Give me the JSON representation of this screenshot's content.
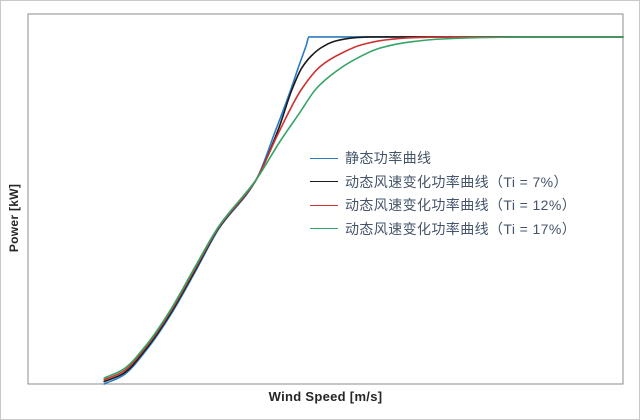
{
  "figure": {
    "x_axis_title": "Wind Speed [m/s]",
    "y_axis_title": "Power [kW]"
  },
  "frame": {
    "plot_border_color": "#8c8c8c",
    "outer_border_color": "#c9c9c9",
    "background": "#ffffff"
  },
  "chart_data": {
    "type": "line",
    "title": "",
    "xlabel": "Wind Speed [m/s]",
    "ylabel": "Power [kW]",
    "axis_note": "no tick labels shown on either axis; x estimated as 0-25 m/s, y normalized to percent of rated power",
    "xlim": [
      0,
      25
    ],
    "ylim": [
      0,
      106.6
    ],
    "grid": false,
    "legend_position": "inside plot, center-right",
    "series": [
      {
        "name": "static-power-curve",
        "label": "静态功率曲线",
        "color": "#2B7BC4",
        "shape": "rises steeply and hits rated power with a sharp corner",
        "points": [
          [
            3.2,
            0
          ],
          [
            4,
            2.5
          ],
          [
            5,
            10
          ],
          [
            6,
            20
          ],
          [
            7,
            32
          ],
          [
            8,
            44.5
          ],
          [
            9.6,
            59
          ],
          [
            10.4,
            73
          ],
          [
            11,
            84
          ],
          [
            11.4,
            92
          ],
          [
            11.7,
            97.8
          ],
          [
            11.8,
            100
          ],
          [
            13,
            100
          ],
          [
            16,
            100
          ],
          [
            20,
            100
          ],
          [
            25,
            100
          ]
        ]
      },
      {
        "name": "dynamic-ti-7",
        "label": "动态风速变化功率曲线（Ti = 7%）",
        "color": "#1A1A1A",
        "shape": "smooth knee, reaches rated power near 14.5 m/s",
        "points": [
          [
            3.2,
            0.7
          ],
          [
            4,
            3
          ],
          [
            5,
            10.5
          ],
          [
            6,
            20.5
          ],
          [
            7,
            32.5
          ],
          [
            8,
            44.8
          ],
          [
            9.6,
            59
          ],
          [
            10.5,
            73
          ],
          [
            11.1,
            85
          ],
          [
            11.5,
            91
          ],
          [
            11.9,
            94.5
          ],
          [
            12.3,
            96.8
          ],
          [
            12.9,
            98.8
          ],
          [
            13.8,
            99.8
          ],
          [
            14.5,
            100
          ],
          [
            17,
            100
          ],
          [
            21,
            100
          ],
          [
            25,
            100
          ]
        ]
      },
      {
        "name": "dynamic-ti-12",
        "label": "动态风速变化功率曲线（Ti = 12%）",
        "color": "#CE3232",
        "shape": "softer knee, reaches rated power near 18 m/s",
        "points": [
          [
            3.2,
            1.2
          ],
          [
            4,
            3.6
          ],
          [
            5,
            11
          ],
          [
            6,
            21
          ],
          [
            7,
            33
          ],
          [
            8,
            45
          ],
          [
            9.6,
            59
          ],
          [
            10.5,
            72
          ],
          [
            11.5,
            85
          ],
          [
            12.3,
            91.6
          ],
          [
            13.2,
            95.4
          ],
          [
            14,
            97.7
          ],
          [
            15,
            99.1
          ],
          [
            16.3,
            99.8
          ],
          [
            17.8,
            100
          ],
          [
            21,
            100
          ],
          [
            25,
            100
          ]
        ]
      },
      {
        "name": "dynamic-ti-17",
        "label": "动态风速变化功率曲线（Ti = 17%）",
        "color": "#34A566",
        "shape": "softest knee, reaches rated power near 21.5 m/s; highest of the four below ~9.6 m/s",
        "points": [
          [
            3.2,
            1.7
          ],
          [
            4,
            4.2
          ],
          [
            5,
            11.5
          ],
          [
            6,
            21.5
          ],
          [
            7,
            33.5
          ],
          [
            8,
            45.3
          ],
          [
            9.6,
            59
          ],
          [
            10.6,
            70
          ],
          [
            11.4,
            78
          ],
          [
            12.1,
            85
          ],
          [
            12.7,
            88.8
          ],
          [
            13.6,
            93
          ],
          [
            14.8,
            96.8
          ],
          [
            16.1,
            98.6
          ],
          [
            17.4,
            99.4
          ],
          [
            19,
            99.8
          ],
          [
            21.6,
            100
          ],
          [
            25,
            100
          ]
        ]
      }
    ],
    "crossing_point_note": "all four curves intersect at ~9.6 m/s / 59% rated power"
  }
}
